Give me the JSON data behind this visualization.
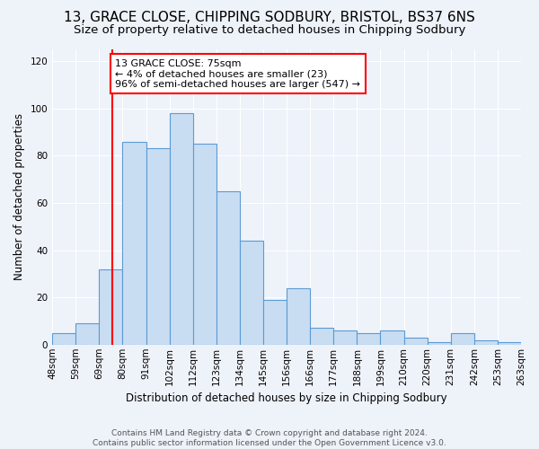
{
  "title": "13, GRACE CLOSE, CHIPPING SODBURY, BRISTOL, BS37 6NS",
  "subtitle": "Size of property relative to detached houses in Chipping Sodbury",
  "xlabel": "Distribution of detached houses by size in Chipping Sodbury",
  "ylabel": "Number of detached properties",
  "footer_line1": "Contains HM Land Registry data © Crown copyright and database right 2024.",
  "footer_line2": "Contains public sector information licensed under the Open Government Licence v3.0.",
  "bin_labels": [
    "48sqm",
    "59sqm",
    "69sqm",
    "80sqm",
    "91sqm",
    "102sqm",
    "112sqm",
    "123sqm",
    "134sqm",
    "145sqm",
    "156sqm",
    "166sqm",
    "177sqm",
    "188sqm",
    "199sqm",
    "210sqm",
    "220sqm",
    "231sqm",
    "242sqm",
    "253sqm",
    "263sqm"
  ],
  "bar_values": [
    5,
    9,
    32,
    86,
    83,
    98,
    85,
    65,
    44,
    19,
    24,
    7,
    6,
    5,
    6,
    3,
    1,
    5,
    2,
    1
  ],
  "bar_color": "#c9ddf2",
  "bar_edge_color": "#5b9bd5",
  "vline_color": "red",
  "annotation_text": "13 GRACE CLOSE: 75sqm\n← 4% of detached houses are smaller (23)\n96% of semi-detached houses are larger (547) →",
  "annotation_box_color": "white",
  "annotation_box_edge": "red",
  "ylim": [
    0,
    125
  ],
  "yticks": [
    0,
    20,
    40,
    60,
    80,
    100,
    120
  ],
  "background_color": "#eef2f9",
  "grid_color": "#ffffff",
  "title_fontsize": 11,
  "subtitle_fontsize": 9.5,
  "xlabel_fontsize": 8.5,
  "ylabel_fontsize": 8.5,
  "tick_fontsize": 7.5,
  "annot_fontsize": 8,
  "footer_fontsize": 6.5,
  "bin_starts": [
    48,
    59,
    69,
    80,
    91,
    102,
    112,
    123,
    134,
    145,
    156,
    166,
    177,
    188,
    199,
    210,
    220,
    231,
    242,
    253,
    263
  ],
  "vline_sqm": 75
}
